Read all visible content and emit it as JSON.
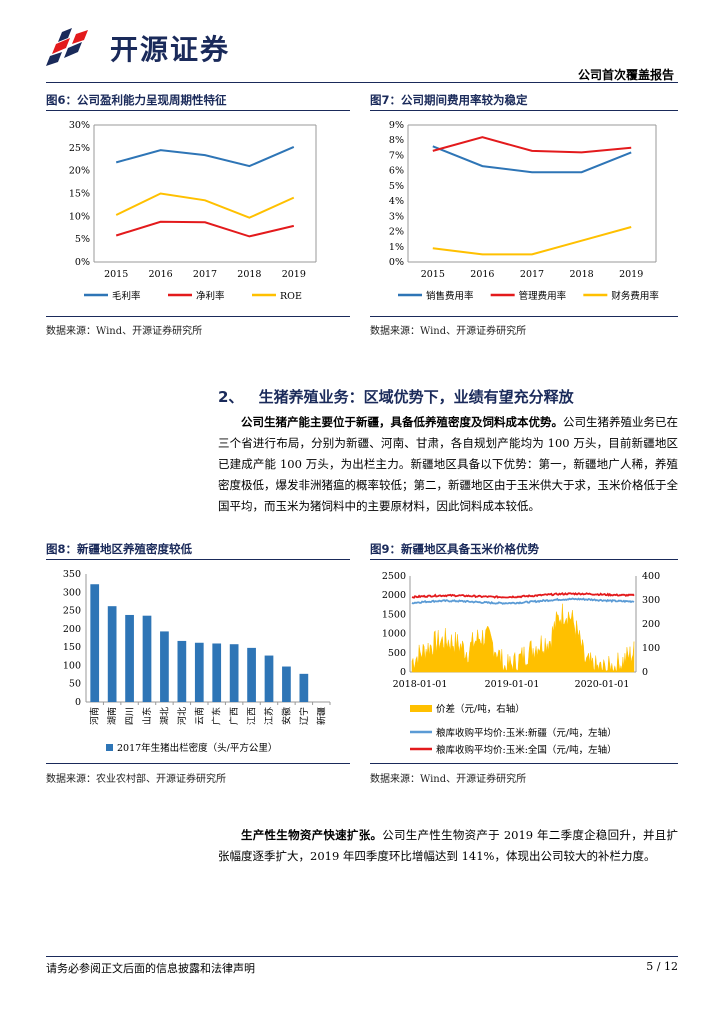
{
  "header": {
    "brand": "开源证券",
    "report_type": "公司首次覆盖报告"
  },
  "fig6": {
    "title": "图6：公司盈利能力呈现周期性特征",
    "source": "数据来源：Wind、开源证券研究所",
    "chart_data": {
      "type": "line",
      "x": [
        "2015",
        "2016",
        "2017",
        "2018",
        "2019"
      ],
      "yticks": [
        "0%",
        "5%",
        "10%",
        "15%",
        "20%",
        "25%",
        "30%"
      ],
      "ylim": [
        0,
        30
      ],
      "series": [
        {
          "name": "毛利率",
          "color": "#2e75b6",
          "values": [
            21.8,
            24.5,
            23.4,
            21.0,
            25.2
          ]
        },
        {
          "name": "净利率",
          "color": "#e31a1c",
          "values": [
            5.8,
            8.8,
            8.7,
            5.6,
            7.9
          ]
        },
        {
          "name": "ROE",
          "color": "#ffc000",
          "values": [
            10.3,
            15.0,
            13.5,
            9.7,
            14.1
          ]
        }
      ]
    }
  },
  "fig7": {
    "title": "图7：公司期间费用率较为稳定",
    "source": "数据来源：Wind、开源证券研究所",
    "chart_data": {
      "type": "line",
      "x": [
        "2015",
        "2016",
        "2017",
        "2018",
        "2019"
      ],
      "yticks": [
        "0%",
        "1%",
        "2%",
        "3%",
        "4%",
        "5%",
        "6%",
        "7%",
        "8%",
        "9%"
      ],
      "ylim": [
        0,
        9
      ],
      "series": [
        {
          "name": "销售费用率",
          "color": "#2e75b6",
          "values": [
            7.6,
            6.3,
            5.9,
            5.9,
            7.2
          ]
        },
        {
          "name": "管理费用率",
          "color": "#e31a1c",
          "values": [
            7.3,
            8.2,
            7.3,
            7.2,
            7.5
          ]
        },
        {
          "name": "财务费用率",
          "color": "#ffc000",
          "values": [
            0.9,
            0.5,
            0.5,
            1.4,
            2.3
          ]
        }
      ]
    }
  },
  "section2": {
    "number": "2、",
    "title": "生猪养殖业务：区域优势下，业绩有望充分释放",
    "para1_bold": "公司生猪产能主要位于新疆，具备低养殖密度及饲料成本优势。",
    "para1_rest": "公司生猪养殖业务已在三个省进行布局，分别为新疆、河南、甘肃，各自规划产能均为 100 万头，目前新疆地区已建成产能 100 万头，为出栏主力。新疆地区具备以下优势：第一，新疆地广人稀，养殖密度极低，爆发非洲猪瘟的概率较低；第二，新疆地区由于玉米供大于求，玉米价格低于全国平均，而玉米为猪饲料中的主要原材料，因此饲料成本较低。"
  },
  "fig8": {
    "title": "图8：新疆地区养殖密度较低",
    "source": "数据来源：农业农村部、开源证券研究所",
    "chart_data": {
      "type": "bar",
      "categories": [
        "河南",
        "湖南",
        "四川",
        "山东",
        "湖北",
        "河北",
        "云南",
        "广东",
        "广西",
        "江西",
        "江苏",
        "安徽",
        "辽宁",
        "新疆"
      ],
      "values": [
        322,
        262,
        238,
        236,
        193,
        167,
        162,
        160,
        158,
        148,
        127,
        97,
        77,
        0
      ],
      "yticks": [
        "0",
        "50",
        "100",
        "150",
        "200",
        "250",
        "300",
        "350"
      ],
      "ylim": [
        0,
        350
      ],
      "legend": "2017年生猪出栏密度（头/平方公里）",
      "color": "#2e75b6"
    }
  },
  "fig9": {
    "title": "图9：新疆地区具备玉米价格优势",
    "source": "数据来源：Wind、开源证券研究所",
    "chart_data": {
      "type": "area",
      "xticks": [
        "2018-01-01",
        "2019-01-01",
        "2020-01-01"
      ],
      "yticks_left": [
        "0",
        "500",
        "1000",
        "1500",
        "2000",
        "2500"
      ],
      "yticks_right": [
        "0",
        "100",
        "200",
        "300",
        "400"
      ],
      "ylim_left": [
        0,
        2500
      ],
      "ylim_right": [
        0,
        400
      ],
      "series": [
        {
          "name": "价差（元/吨，右轴）",
          "color": "#ffc000",
          "axis": "right"
        },
        {
          "name": "粮库收购平均价:玉米:新疆（元/吨，左轴）",
          "color": "#5b9bd5",
          "axis": "left"
        },
        {
          "name": "粮库收购平均价:玉米:全国（元/吨，左轴）",
          "color": "#e31a1c",
          "axis": "left"
        }
      ]
    }
  },
  "para2": {
    "bold": "生产性生物资产快速扩张。",
    "rest": "公司生产性生物资产于 2019 年二季度企稳回升，并且扩张幅度逐季扩大，2019 年四季度环比增幅达到 141%，体现出公司较大的补栏力度。"
  },
  "footer": {
    "disclaimer": "请务必参阅正文后面的信息披露和法律声明",
    "page": "5 / 12"
  }
}
